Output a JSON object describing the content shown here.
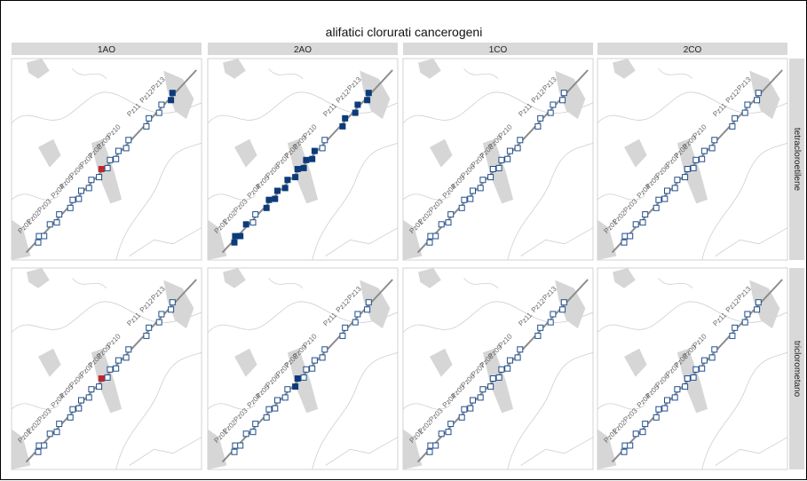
{
  "chart_data": {
    "type": "scatter",
    "title": "alifatici clorurati cancerogeni",
    "columns": [
      "1AO",
      "2AO",
      "1CO",
      "2CO"
    ],
    "rows": [
      "tetracloroetilene",
      "triclorometano"
    ],
    "stations": [
      "Pz01",
      "Pz02",
      "Pz03",
      "Pz04",
      "Pz05",
      "Pz06",
      "Pz07",
      "Pz08",
      "Pz09",
      "Pz10",
      "Pz11",
      "Pz12",
      "Pz13"
    ],
    "legend": "none",
    "colors": {
      "not_detected": "#ffffff",
      "detected": "#0d3b7a",
      "exceeded": "#c0272d",
      "marker_stroke": "#1f4e8c",
      "river": "#8c8c8c",
      "map_land": "#d6d6d6",
      "map_lines": "#cfcfcf"
    },
    "panels": [
      {
        "row": "tetracloroetilene",
        "col": "1AO",
        "status": [
          "none",
          "none",
          "none",
          "none",
          "none",
          "none",
          "exceeded",
          "none",
          "none",
          "none",
          "none",
          "none",
          "detected"
        ]
      },
      {
        "row": "tetracloroetilene",
        "col": "2AO",
        "status": [
          "detected",
          "detected",
          "none",
          "detected",
          "detected",
          "detected",
          "detected",
          "detected",
          "detected",
          "none",
          "detected",
          "detected",
          "detected"
        ]
      },
      {
        "row": "tetracloroetilene",
        "col": "1CO",
        "status": [
          "none",
          "none",
          "none",
          "none",
          "none",
          "none",
          "none",
          "none",
          "none",
          "none",
          "none",
          "none",
          "none"
        ]
      },
      {
        "row": "tetracloroetilene",
        "col": "2CO",
        "status": [
          "none",
          "none",
          "none",
          "none",
          "none",
          "none",
          "none",
          "none",
          "none",
          "none",
          "none",
          "none",
          "none"
        ]
      },
      {
        "row": "triclorometano",
        "col": "1AO",
        "status": [
          "none",
          "none",
          "none",
          "none",
          "none",
          "none",
          "exceeded",
          "none",
          "none",
          "none",
          "none",
          "none",
          "none"
        ]
      },
      {
        "row": "triclorometano",
        "col": "2AO",
        "status": [
          "none",
          "none",
          "none",
          "none",
          "none",
          "none",
          "detected",
          "none",
          "none",
          "none",
          "none",
          "none",
          "none"
        ]
      },
      {
        "row": "triclorometano",
        "col": "1CO",
        "status": [
          "none",
          "none",
          "none",
          "none",
          "none",
          "none",
          "none",
          "none",
          "none",
          "none",
          "none",
          "none",
          "none"
        ]
      },
      {
        "row": "triclorometano",
        "col": "2CO",
        "status": [
          "none",
          "none",
          "none",
          "none",
          "none",
          "none",
          "none",
          "none",
          "none",
          "none",
          "none",
          "none",
          "none"
        ]
      }
    ]
  }
}
